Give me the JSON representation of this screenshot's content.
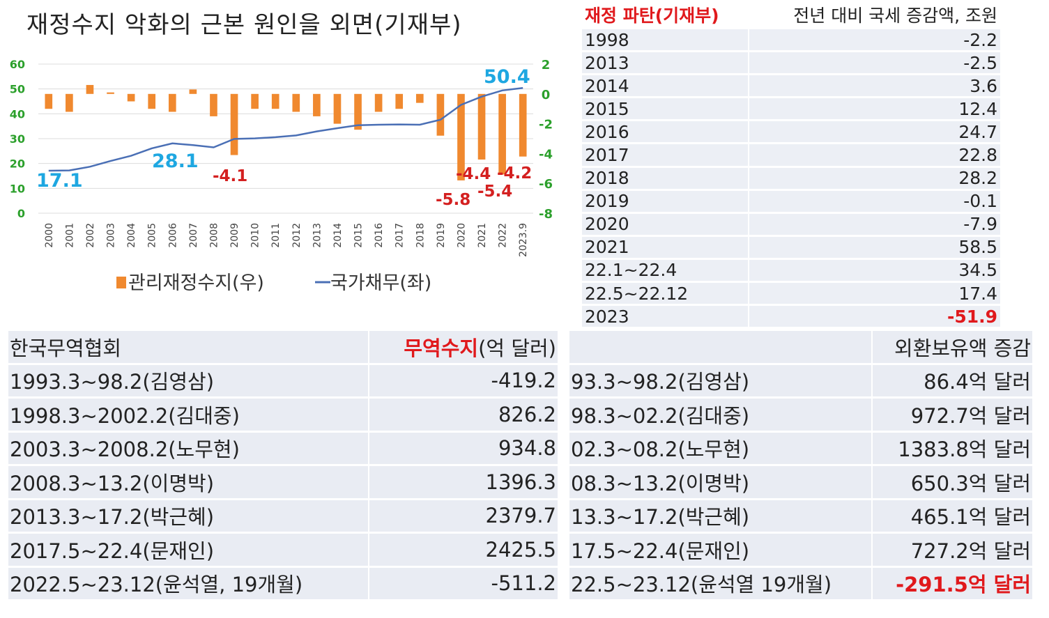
{
  "chart_data": {
    "type": "bar+line",
    "title": "재정수지 악화의 근본 원인을 외면(기재부)",
    "categories": [
      "2000",
      "2001",
      "2002",
      "2003",
      "2004",
      "2005",
      "2006",
      "2007",
      "2008",
      "2009",
      "2010",
      "2011",
      "2012",
      "2013",
      "2014",
      "2015",
      "2016",
      "2017",
      "2018",
      "2019",
      "2020",
      "2021",
      "2022",
      "2023.9"
    ],
    "series": [
      {
        "name": "관리재정수지(우)",
        "axis": "right",
        "kind": "bar",
        "color": "#f0892f",
        "values": [
          -1.0,
          -1.2,
          0.6,
          0.1,
          -0.5,
          -1.0,
          -1.2,
          0.3,
          -1.5,
          -4.1,
          -1.0,
          -1.0,
          -1.2,
          -1.5,
          -2.0,
          -2.4,
          -1.2,
          -1.0,
          -0.6,
          -2.8,
          -5.8,
          -4.4,
          -5.4,
          -4.2
        ]
      },
      {
        "name": "국가채무(좌)",
        "axis": "left",
        "kind": "line",
        "color": "#4a6fb5",
        "values": [
          17.1,
          17.2,
          18.7,
          21.0,
          23.1,
          26.1,
          28.1,
          27.4,
          26.5,
          29.9,
          30.1,
          30.6,
          31.3,
          32.9,
          34.2,
          35.4,
          35.6,
          35.7,
          35.6,
          37.6,
          43.6,
          46.9,
          49.4,
          50.4
        ]
      }
    ],
    "ylim_left": [
      0,
      60
    ],
    "yticks_left": [
      "0",
      "10",
      "20",
      "30",
      "40",
      "50",
      "60"
    ],
    "ylim_right": [
      -8,
      2
    ],
    "yticks_right": [
      "-8",
      "-6",
      "-4",
      "-2",
      "0",
      "2"
    ],
    "annotations_debt": [
      "17.1",
      "28.1",
      "50.4"
    ],
    "annotations_balance": [
      "-4.1",
      "-5.8",
      "-4.4",
      "-5.4",
      "-4.2"
    ],
    "grid": true,
    "legend_position": "bottom"
  },
  "tax_table": {
    "header_label": "재정 파탄(기재부)",
    "header_value": "전년 대비 국세 증감액, 조원",
    "rows": [
      {
        "year": "1998",
        "value": "-2.2"
      },
      {
        "year": "2013",
        "value": "-2.5"
      },
      {
        "year": "2014",
        "value": "3.6"
      },
      {
        "year": "2015",
        "value": "12.4"
      },
      {
        "year": "2016",
        "value": "24.7"
      },
      {
        "year": "2017",
        "value": "22.8"
      },
      {
        "year": "2018",
        "value": "28.2"
      },
      {
        "year": "2019",
        "value": "-0.1"
      },
      {
        "year": "2020",
        "value": "-7.9"
      },
      {
        "year": "2021",
        "value": "58.5"
      },
      {
        "year": "22.1~22.4",
        "value": "34.5"
      },
      {
        "year": "22.5~22.12",
        "value": "17.4"
      },
      {
        "year": "2023",
        "value": "-51.9",
        "highlight": true
      }
    ]
  },
  "trade_table": {
    "header_label": "한국무역협회",
    "header_value_red": "무역수지",
    "header_value_rest": "(억 달러)",
    "rows": [
      {
        "period": "1993.3~98.2(김영삼)",
        "value": "-419.2"
      },
      {
        "period": "1998.3~2002.2(김대중)",
        "value": "826.2"
      },
      {
        "period": "2003.3~2008.2(노무현)",
        "value": "934.8"
      },
      {
        "period": "2008.3~13.2(이명박)",
        "value": "1396.3"
      },
      {
        "period": "2013.3~17.2(박근혜)",
        "value": "2379.7"
      },
      {
        "period": "2017.5~22.4(문재인)",
        "value": "2425.5"
      },
      {
        "period": "2022.5~23.12(윤석열, 19개월)",
        "value": "-511.2"
      }
    ]
  },
  "fx_table": {
    "header_label": "",
    "header_value": "외환보유액 증감",
    "rows": [
      {
        "period": "93.3~98.2(김영삼)",
        "value": "86.4억 달러"
      },
      {
        "period": "98.3~02.2(김대중)",
        "value": "972.7억 달러"
      },
      {
        "period": "02.3~08.2(노무현)",
        "value": "1383.8억 달러"
      },
      {
        "period": "08.3~13.2(이명박)",
        "value": "650.3억 달러"
      },
      {
        "period": "13.3~17.2(박근혜)",
        "value": "465.1억 달러"
      },
      {
        "period": "17.5~22.4(문재인)",
        "value": "727.2억 달러"
      },
      {
        "period": "22.5~23.12(윤석열 19개월)",
        "value": "-291.5억 달러",
        "highlight": true
      }
    ]
  }
}
